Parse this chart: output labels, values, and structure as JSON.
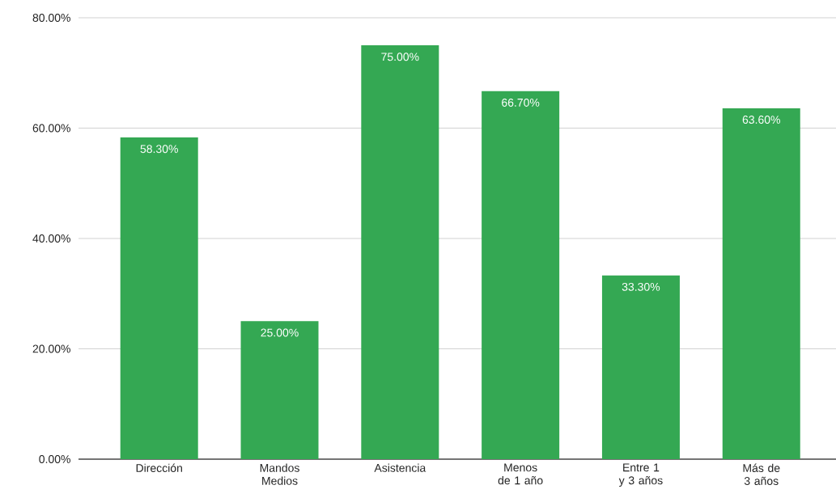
{
  "chart_data": {
    "type": "bar",
    "categories": [
      "Dirección",
      "Mandos Medios",
      "Asistencia",
      "Menos de 1 año",
      "Entre 1 y 3 años",
      "Más de 3 años"
    ],
    "values": [
      58.3,
      25,
      75,
      66.7,
      33.3,
      63.6
    ],
    "value_labels": [
      "58.30%",
      "25.00%",
      "75.00%",
      "66.70%",
      "33.30%",
      "63.60%"
    ],
    "color": "#34a853",
    "ylim": [
      0,
      80
    ],
    "yticks": [
      {
        "value": 0,
        "label": "0.00%"
      },
      {
        "value": 20,
        "label": "20.00%"
      },
      {
        "value": 40,
        "label": "40.00%"
      },
      {
        "value": 60,
        "label": "60.00%"
      },
      {
        "value": 80,
        "label": "80.00%"
      }
    ],
    "grid": "y"
  }
}
